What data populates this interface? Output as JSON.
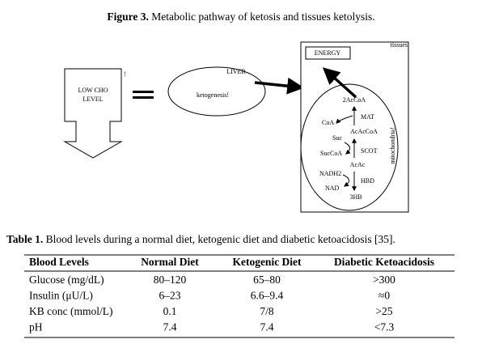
{
  "figure": {
    "label": "Figure 3.",
    "caption": "Metabolic pathway of ketosis and tissues ketolysis."
  },
  "diagram": {
    "low_cho": [
      "LOW CHO",
      "LEVEL"
    ],
    "bang": "!",
    "liver": "LIVER",
    "ketogenesis": "ketogenesis!",
    "energy": "ENERGY",
    "tissues": "tissues",
    "mitochondria": "mitochondria!",
    "steps": {
      "acoa2": "2AcCoA",
      "mat": "MAT",
      "coa": "CoA",
      "acaccoa": "AcAcCoA",
      "suc": "Suc",
      "succoa": "SucCoA",
      "scot": "SCOT",
      "acac": "AcAc",
      "nadh2": "NADH2",
      "nad": "NAD",
      "hbd": "HBD",
      "hb3": "3HB"
    }
  },
  "table": {
    "label": "Table 1.",
    "caption": "Blood levels during a normal diet, ketogenic diet and diabetic ketoacidosis [35].",
    "header": [
      "Blood Levels",
      "Normal Diet",
      "Ketogenic Diet",
      "Diabetic Ketoacidosis"
    ],
    "rows": [
      [
        "Glucose (mg/dL)",
        "80–120",
        "65–80",
        ">300"
      ],
      [
        "Insulin (μU/L)",
        "6–23",
        "6.6–9.4",
        "≈0"
      ],
      [
        "KB conc (mmol/L)",
        "0.1",
        "7/8",
        ">25"
      ],
      [
        "pH",
        "7.4",
        "7.4",
        "<7.3"
      ]
    ]
  }
}
